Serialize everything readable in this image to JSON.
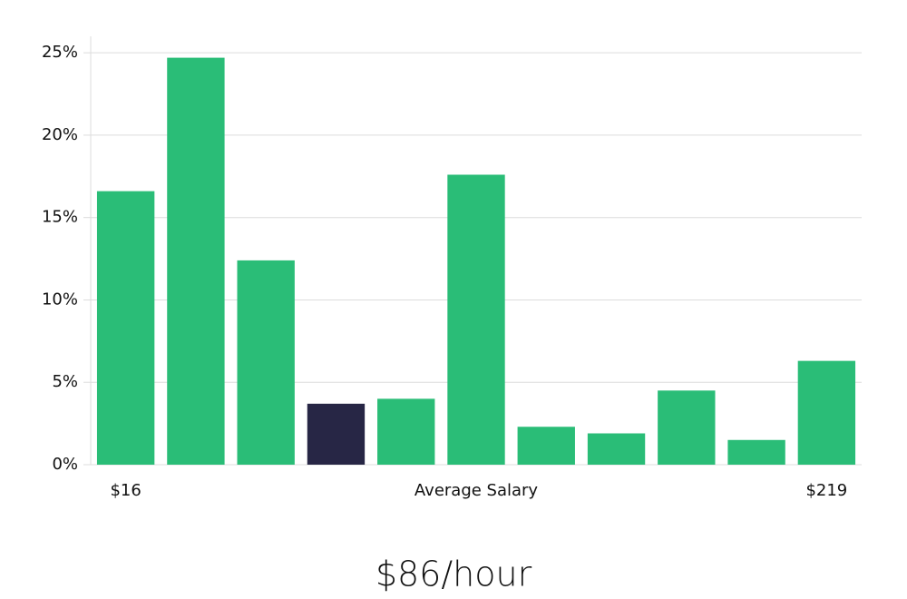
{
  "chart_data": {
    "type": "bar",
    "x_label": "Average Salary",
    "categories": [
      "$16",
      null,
      null,
      null,
      null,
      null,
      null,
      null,
      null,
      null,
      "$219"
    ],
    "values": [
      16.6,
      24.7,
      12.4,
      3.7,
      4.0,
      17.6,
      2.3,
      1.9,
      4.5,
      1.5,
      6.3
    ],
    "colors": [
      "#2abd77",
      "#2abd77",
      "#2abd77",
      "#272645",
      "#2abd77",
      "#2abd77",
      "#2abd77",
      "#2abd77",
      "#2abd77",
      "#2abd77",
      "#2abd77"
    ],
    "ylim": [
      0,
      26
    ],
    "yticks": [
      {
        "value": 0,
        "label": "0%"
      },
      {
        "value": 5,
        "label": "5%"
      },
      {
        "value": 10,
        "label": "10%"
      },
      {
        "value": 15,
        "label": "15%"
      },
      {
        "value": 20,
        "label": "20%"
      },
      {
        "value": 25,
        "label": "25%"
      }
    ],
    "grid": true,
    "annotation": "$86/hour"
  }
}
